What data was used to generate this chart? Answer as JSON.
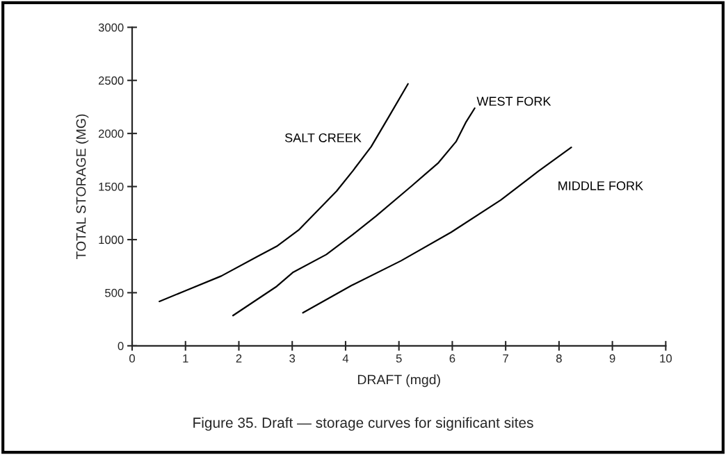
{
  "chart_data": {
    "type": "line",
    "title": "Figure 35. Draft — storage curves for significant sites",
    "xlabel": "DRAFT (mgd)",
    "ylabel": "TOTAL STORAGE (MG)",
    "series": [
      {
        "name": "SALT CREEK",
        "color": "#000000",
        "x": [
          0.51,
          1.0,
          1.67,
          2.36,
          2.71,
          3.12,
          3.83,
          4.14,
          4.48,
          4.81,
          5.17
        ],
        "values": [
          418,
          519,
          657,
          845,
          937,
          1090,
          1456,
          1650,
          1876,
          2157,
          2467
        ]
      },
      {
        "name": "WEST FORK",
        "color": "#000000",
        "x": [
          1.89,
          2.71,
          3.01,
          3.64,
          4.14,
          4.57,
          5.23,
          5.74,
          6.07,
          6.26,
          6.42
        ],
        "values": [
          285,
          560,
          690,
          860,
          1050,
          1222,
          1502,
          1724,
          1923,
          2110,
          2238
        ]
      },
      {
        "name": "MIDDLE FORK",
        "color": "#000000",
        "x": [
          3.2,
          4.11,
          5.04,
          5.98,
          6.91,
          7.61,
          8.23
        ],
        "values": [
          311,
          568,
          801,
          1070,
          1374,
          1643,
          1869
        ]
      }
    ],
    "xlim": [
      0,
      10
    ],
    "ylim": [
      0,
      3000
    ],
    "xticks": [
      0,
      1,
      2,
      3,
      4,
      5,
      6,
      7,
      8,
      9,
      10
    ],
    "yticks": [
      0,
      500,
      1000,
      1500,
      2000,
      2500,
      3000
    ],
    "grid": false,
    "line_style": "solid"
  }
}
